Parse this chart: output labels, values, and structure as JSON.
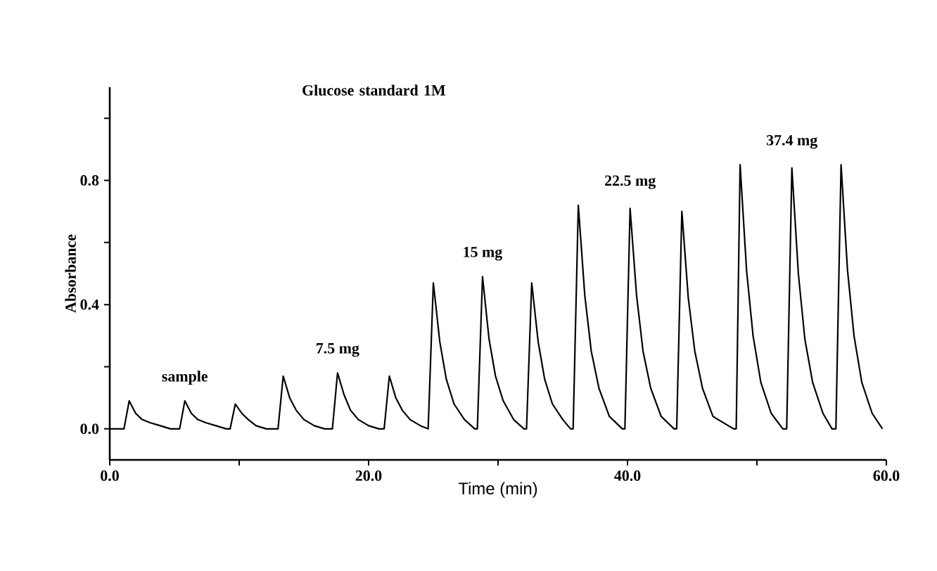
{
  "chart_data": {
    "type": "line",
    "title": "Glucose standard 1M",
    "xlabel": "Time (min)",
    "ylabel": "Absorbance",
    "color": "#000000",
    "x": [
      0,
      1.1,
      1.5,
      2.0,
      2.5,
      3.1,
      3.9,
      4.7,
      5.4,
      5.8,
      6.3,
      6.8,
      7.4,
      8.2,
      9.0,
      9.3,
      9.7,
      10.2,
      10.7,
      11.3,
      12.1,
      12.9,
      13.0,
      13.4,
      13.9,
      14.4,
      15.0,
      15.8,
      16.6,
      17.2,
      17.6,
      18.1,
      18.6,
      19.2,
      20.0,
      20.8,
      21.2,
      21.6,
      22.1,
      22.6,
      23.2,
      24.0,
      24.6,
      25.0,
      25.5,
      26.0,
      26.6,
      27.4,
      28.2,
      28.4,
      28.8,
      29.3,
      29.8,
      30.4,
      31.2,
      32.0,
      32.2,
      32.6,
      33.1,
      33.6,
      34.2,
      35.0,
      35.6,
      35.8,
      36.2,
      36.7,
      37.2,
      37.8,
      38.6,
      39.6,
      39.8,
      40.2,
      40.7,
      41.2,
      41.8,
      42.6,
      43.6,
      43.8,
      44.2,
      44.7,
      45.2,
      45.8,
      46.6,
      48.2,
      48.4,
      48.7,
      49.2,
      49.7,
      50.3,
      51.1,
      52.0,
      52.3,
      52.7,
      53.2,
      53.7,
      54.3,
      55.1,
      55.8,
      56.1,
      56.5,
      57.0,
      57.5,
      58.1,
      58.9,
      59.7
    ],
    "values": [
      0,
      0,
      0.09,
      0.05,
      0.03,
      0.02,
      0.01,
      0,
      0,
      0.09,
      0.05,
      0.03,
      0.02,
      0.01,
      0,
      0,
      0.08,
      0.05,
      0.03,
      0.01,
      0,
      0,
      0,
      0.17,
      0.1,
      0.06,
      0.03,
      0.01,
      0,
      0,
      0.18,
      0.11,
      0.06,
      0.03,
      0.01,
      0,
      0,
      0.17,
      0.1,
      0.06,
      0.03,
      0.01,
      0,
      0.47,
      0.28,
      0.16,
      0.08,
      0.03,
      0,
      0,
      0.49,
      0.29,
      0.17,
      0.09,
      0.03,
      0,
      0,
      0.47,
      0.28,
      0.16,
      0.08,
      0.03,
      0,
      0,
      0.72,
      0.43,
      0.25,
      0.13,
      0.04,
      0,
      0,
      0.71,
      0.43,
      0.25,
      0.13,
      0.04,
      0,
      0,
      0.7,
      0.42,
      0.25,
      0.13,
      0.04,
      0,
      0,
      0.85,
      0.51,
      0.3,
      0.15,
      0.05,
      0,
      0,
      0.84,
      0.5,
      0.29,
      0.15,
      0.05,
      0,
      0,
      0.85,
      0.51,
      0.3,
      0.15,
      0.05,
      0
    ],
    "xlim": [
      0,
      60
    ],
    "ylim": [
      -0.1,
      1.1
    ],
    "xticks": [
      {
        "value": 0,
        "label": "0.0"
      },
      {
        "value": 10,
        "label": null
      },
      {
        "value": 20,
        "label": "20.0"
      },
      {
        "value": 30,
        "label": null
      },
      {
        "value": 40,
        "label": "40.0"
      },
      {
        "value": 50,
        "label": null
      },
      {
        "value": 60,
        "label": "60.0"
      }
    ],
    "yticks": [
      {
        "value": 0,
        "label": "0.0"
      },
      {
        "value": 0.2,
        "label": null
      },
      {
        "value": 0.4,
        "label": "0.4"
      },
      {
        "value": 0.6,
        "label": null
      },
      {
        "value": 0.8,
        "label": "0.8"
      },
      {
        "value": 1.0,
        "label": null
      }
    ],
    "annotations": [
      "sample",
      "7.5 mg",
      "15 mg",
      "22.5 mg",
      "37.4 mg"
    ]
  }
}
